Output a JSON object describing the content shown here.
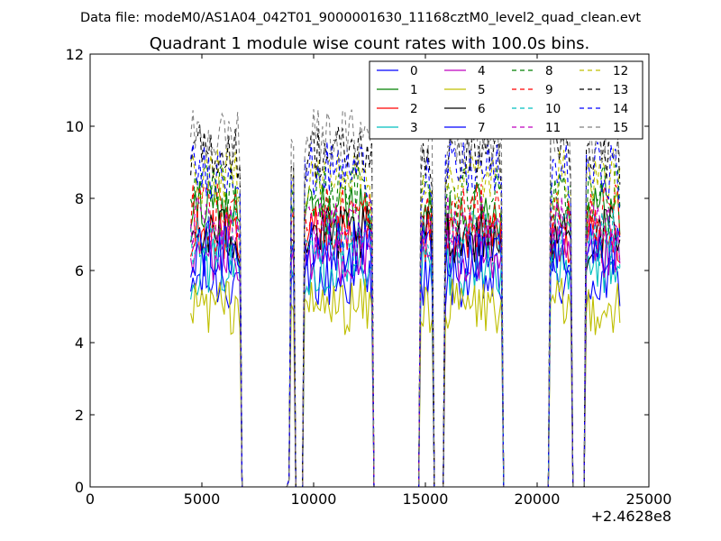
{
  "chart_data": {
    "type": "line",
    "suptitle": "Data file: modeM0/AS1A04_042T01_9000001630_11168cztM0_level2_quad_clean.evt",
    "title": "Quadrant 1 module wise count rates with 100.0s bins.",
    "xlabel": "",
    "ylabel": "",
    "x_offset_label": "+2.4628e8",
    "xlim": [
      0,
      25000
    ],
    "ylim": [
      0,
      12
    ],
    "xticks": [
      0,
      5000,
      10000,
      15000,
      20000,
      25000
    ],
    "xtick_labels": [
      "0",
      "5000",
      "10000",
      "15000",
      "20000",
      "25000"
    ],
    "yticks": [
      0,
      2,
      4,
      6,
      8,
      10,
      12
    ],
    "ytick_labels": [
      "0",
      "2",
      "4",
      "6",
      "8",
      "10",
      "12"
    ],
    "grid": false,
    "legend_position": "top-right",
    "bin_size_s": 100,
    "segments": [
      {
        "start": 4500,
        "end": 6700,
        "bottom": 0
      },
      {
        "start": 8900,
        "end": 9150,
        "bottom": 0,
        "spike": true
      },
      {
        "start": 9600,
        "end": 12600,
        "bottom": 0
      },
      {
        "start": 14800,
        "end": 15300,
        "bottom": 0
      },
      {
        "start": 15900,
        "end": 18400,
        "bottom": 0
      },
      {
        "start": 20600,
        "end": 21500,
        "bottom": 0
      },
      {
        "start": 22200,
        "end": 23700,
        "bottom": 0
      }
    ],
    "series": [
      {
        "name": "0",
        "color": "#0000ff",
        "style": "solid",
        "level": 5.7
      },
      {
        "name": "1",
        "color": "#008000",
        "style": "solid",
        "level": 7.7
      },
      {
        "name": "2",
        "color": "#ff0000",
        "style": "solid",
        "level": 7.0
      },
      {
        "name": "3",
        "color": "#00bfbf",
        "style": "solid",
        "level": 6.1
      },
      {
        "name": "4",
        "color": "#bf00bf",
        "style": "solid",
        "level": 6.4
      },
      {
        "name": "5",
        "color": "#bfbf00",
        "style": "solid",
        "level": 5.0
      },
      {
        "name": "6",
        "color": "#000000",
        "style": "solid",
        "level": 7.0
      },
      {
        "name": "7",
        "color": "#0000ff",
        "style": "solid",
        "level": 6.6
      },
      {
        "name": "8",
        "color": "#008000",
        "style": "dashed",
        "level": 8.2
      },
      {
        "name": "9",
        "color": "#ff0000",
        "style": "dashed",
        "level": 7.6
      },
      {
        "name": "10",
        "color": "#00bfbf",
        "style": "dashed",
        "level": 6.9
      },
      {
        "name": "11",
        "color": "#bf00bf",
        "style": "dashed",
        "level": 7.3
      },
      {
        "name": "12",
        "color": "#bfbf00",
        "style": "dashed",
        "level": 8.6
      },
      {
        "name": "13",
        "color": "#000000",
        "style": "dashed",
        "level": 9.3
      },
      {
        "name": "14",
        "color": "#0000ff",
        "style": "dashed",
        "level": 8.8
      },
      {
        "name": "15",
        "color": "#808080",
        "style": "dashed",
        "level": 9.7
      }
    ]
  }
}
